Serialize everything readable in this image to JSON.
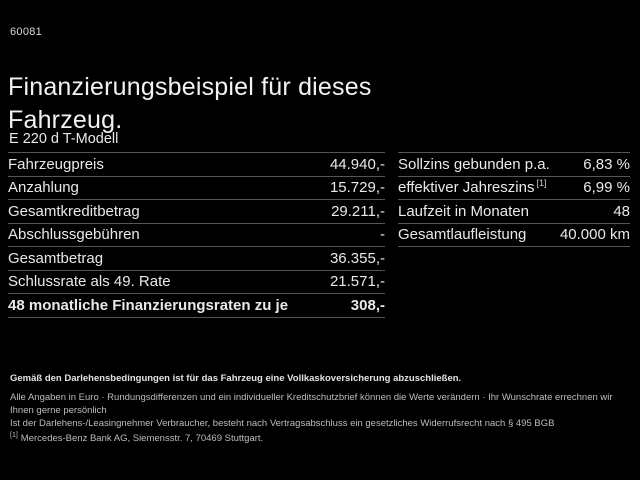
{
  "page": {
    "ref_number": "60081",
    "title": "Finanzierungsbeispiel für dieses Fahrzeug.",
    "model": "E 220 d T-Modell"
  },
  "left_table": {
    "rows": [
      {
        "label": "Fahrzeugpreis",
        "value": "44.940,-"
      },
      {
        "label": "Anzahlung",
        "value": "15.729,-"
      },
      {
        "label": "Gesamtkreditbetrag",
        "value": "29.211,-"
      },
      {
        "label": "Abschlussgebühren",
        "value": "-"
      },
      {
        "label": "Gesamtbetrag",
        "value": "36.355,-"
      },
      {
        "label": "Schlussrate als 49. Rate",
        "value": "21.571,-"
      },
      {
        "label": "48 monatliche Finanzierungsraten zu je",
        "value": "308,-"
      }
    ]
  },
  "right_table": {
    "rows": [
      {
        "label": "Sollzins gebunden p.a.",
        "sup": "",
        "value": "6,83 %"
      },
      {
        "label": "effektiver Jahreszins",
        "sup": "[1]",
        "value": "6,99 %"
      },
      {
        "label": "Laufzeit in Monaten",
        "sup": "",
        "value": "48"
      },
      {
        "label": "Gesamtlaufleistung",
        "sup": "",
        "value": "40.000 km"
      }
    ]
  },
  "footer": {
    "insurance_note": "Gemäß den Darlehensbedingungen ist für das Fahrzeug eine Vollkaskoversicherung abzuschließen.",
    "disclaimer_line1": "Alle Angaben in Euro · Rundungsdifferenzen und ein individueller Kreditschutzbrief können die Werte verändern · Ihr Wunschrate errechnen wir Ihnen gerne persönlich",
    "disclaimer_line2": "Ist der Darlehens-/Leasingnehmer Verbraucher, besteht nach Vertragsabschluss ein gesetzliches Widerrufsrecht nach § 495 BGB",
    "footnote_marker": "[1]",
    "footnote_text": "Mercedes-Benz Bank AG, Siemensstr. 7, 70469 Stuttgart."
  },
  "colors": {
    "background": "#000000",
    "text_primary": "#f2f2f2",
    "divider": "#565656",
    "footer_text": "#bdbdbd"
  }
}
